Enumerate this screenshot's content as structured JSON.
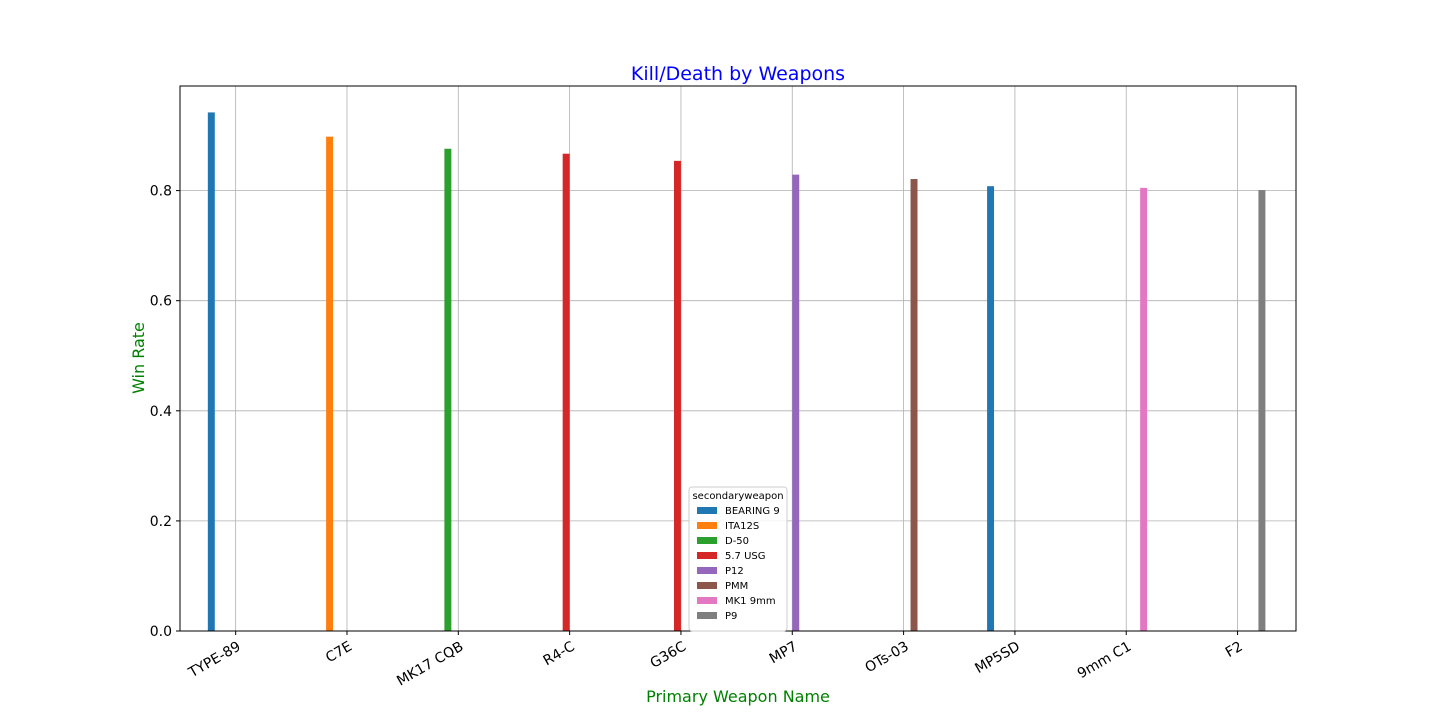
{
  "chart_data": {
    "type": "bar",
    "title": "Kill/Death by Weapons",
    "xlabel": "Primary Weapon Name",
    "ylabel": "Win Rate",
    "title_color": "#0000ff",
    "label_color": "#008000",
    "ylim": [
      0,
      0.99
    ],
    "yticks": [
      0.0,
      0.2,
      0.4,
      0.6,
      0.8
    ],
    "ytick_labels": [
      "0.0",
      "0.2",
      "0.4",
      "0.6",
      "0.8"
    ],
    "grid": true,
    "legend_title": "secondaryweapon",
    "legend_position": "lower center",
    "categories": [
      "TYPE-89",
      "C7E",
      "MK17 CQB",
      "R4-C",
      "G36C",
      "MP7",
      "OTs-03",
      "MP5SD",
      "9mm C1",
      "F2"
    ],
    "series": [
      {
        "name": "BEARING 9",
        "color": "#1f77b4",
        "values": [
          0.942,
          null,
          null,
          null,
          null,
          null,
          null,
          0.808,
          null,
          null
        ]
      },
      {
        "name": "ITA12S",
        "color": "#ff7f0e",
        "values": [
          null,
          0.898,
          null,
          null,
          null,
          null,
          null,
          null,
          null,
          null
        ]
      },
      {
        "name": "D-50",
        "color": "#2ca02c",
        "values": [
          null,
          null,
          0.876,
          null,
          null,
          null,
          null,
          null,
          null,
          null
        ]
      },
      {
        "name": "5.7 USG",
        "color": "#d62728",
        "values": [
          null,
          null,
          null,
          0.867,
          0.854,
          null,
          null,
          null,
          null,
          null
        ]
      },
      {
        "name": "P12",
        "color": "#9467bd",
        "values": [
          null,
          null,
          null,
          null,
          null,
          0.829,
          null,
          null,
          null,
          null
        ]
      },
      {
        "name": "PMM",
        "color": "#8c564b",
        "values": [
          null,
          null,
          null,
          null,
          null,
          null,
          0.821,
          null,
          null,
          null
        ]
      },
      {
        "name": "MK1 9mm",
        "color": "#e377c2",
        "values": [
          null,
          null,
          null,
          null,
          null,
          null,
          null,
          null,
          0.805,
          null
        ]
      },
      {
        "name": "P9",
        "color": "#7f7f7f",
        "values": [
          null,
          null,
          null,
          null,
          null,
          null,
          null,
          null,
          null,
          0.801
        ]
      }
    ]
  }
}
